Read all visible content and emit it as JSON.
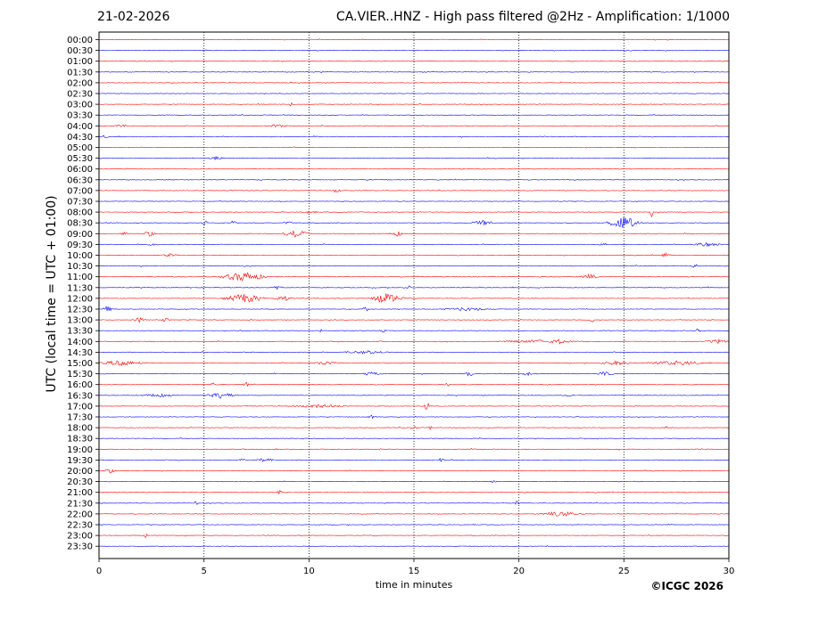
{
  "header": {
    "date": "21-02-2026",
    "title": "CA.VIER..HNZ - High pass filtered @2Hz - Amplification: 1/1000"
  },
  "footer": {
    "copyright": "©ICGC 2026"
  },
  "chart_data": {
    "type": "line",
    "title": "CA.VIER..HNZ - High pass filtered @2Hz - Amplification: 1/1000",
    "xlabel": "time in minutes",
    "ylabel": "UTC (local time = UTC + 01:00)",
    "xlim": [
      0,
      30
    ],
    "xticks": [
      0,
      5,
      10,
      15,
      20,
      25,
      30
    ],
    "vertical_gridlines": [
      5,
      10,
      15,
      20,
      25
    ],
    "grid": "dotted vertical lines",
    "row_labels": [
      "00:00",
      "00:30",
      "01:00",
      "01:30",
      "02:00",
      "02:30",
      "03:00",
      "03:30",
      "04:00",
      "04:30",
      "05:00",
      "05:30",
      "06:00",
      "06:30",
      "07:00",
      "07:30",
      "08:00",
      "08:30",
      "09:00",
      "09:30",
      "10:00",
      "10:30",
      "11:00",
      "11:30",
      "12:00",
      "12:30",
      "13:00",
      "13:30",
      "14:00",
      "14:30",
      "15:00",
      "15:30",
      "16:00",
      "16:30",
      "17:00",
      "17:30",
      "18:00",
      "18:30",
      "19:00",
      "19:30",
      "20:00",
      "20:30",
      "21:00",
      "21:30",
      "22:00",
      "22:30",
      "23:00",
      "23:30"
    ],
    "trace_colors": [
      "#ff0000",
      "#0000ff"
    ],
    "events": [
      {
        "row": 6,
        "t": 9.2,
        "amp": 4,
        "dur": 0.15
      },
      {
        "row": 8,
        "t": 1.0,
        "amp": 2,
        "dur": 0.5
      },
      {
        "row": 8,
        "t": 8.5,
        "amp": 2,
        "dur": 0.6
      },
      {
        "row": 9,
        "t": 0.3,
        "amp": 2,
        "dur": 0.3
      },
      {
        "row": 11,
        "t": 5.6,
        "amp": 2,
        "dur": 0.5
      },
      {
        "row": 14,
        "t": 11.3,
        "amp": 2.5,
        "dur": 0.3
      },
      {
        "row": 16,
        "t": 10.0,
        "amp": 2,
        "dur": 0.5
      },
      {
        "row": 16,
        "t": 26.3,
        "amp": 6,
        "dur": 0.15
      },
      {
        "row": 17,
        "t": 5.0,
        "amp": 4,
        "dur": 0.2
      },
      {
        "row": 17,
        "t": 6.4,
        "amp": 3,
        "dur": 0.2
      },
      {
        "row": 17,
        "t": 9.0,
        "amp": 2,
        "dur": 0.3
      },
      {
        "row": 17,
        "t": 18.3,
        "amp": 3,
        "dur": 0.8
      },
      {
        "row": 17,
        "t": 25.0,
        "amp": 7,
        "dur": 1.0
      },
      {
        "row": 18,
        "t": 1.2,
        "amp": 2,
        "dur": 0.3
      },
      {
        "row": 18,
        "t": 2.4,
        "amp": 3,
        "dur": 0.5
      },
      {
        "row": 18,
        "t": 9.4,
        "amp": 4.5,
        "dur": 0.8
      },
      {
        "row": 18,
        "t": 14.2,
        "amp": 3,
        "dur": 0.4
      },
      {
        "row": 19,
        "t": 2.6,
        "amp": 2,
        "dur": 0.4
      },
      {
        "row": 19,
        "t": 24.0,
        "amp": 2,
        "dur": 0.3
      },
      {
        "row": 19,
        "t": 29.0,
        "amp": 2.5,
        "dur": 1.0
      },
      {
        "row": 20,
        "t": 3.4,
        "amp": 2,
        "dur": 0.5
      },
      {
        "row": 20,
        "t": 27.0,
        "amp": 2.5,
        "dur": 0.3
      },
      {
        "row": 21,
        "t": 28.4,
        "amp": 3,
        "dur": 0.2
      },
      {
        "row": 22,
        "t": 6.9,
        "amp": 5.5,
        "dur": 1.4
      },
      {
        "row": 22,
        "t": 23.3,
        "amp": 3.5,
        "dur": 0.6
      },
      {
        "row": 23,
        "t": 14.8,
        "amp": 2.5,
        "dur": 0.2
      },
      {
        "row": 23,
        "t": 8.5,
        "amp": 2,
        "dur": 0.4
      },
      {
        "row": 24,
        "t": 6.9,
        "amp": 5.5,
        "dur": 1.2
      },
      {
        "row": 24,
        "t": 8.8,
        "amp": 3,
        "dur": 0.6
      },
      {
        "row": 24,
        "t": 13.7,
        "amp": 6,
        "dur": 1.0
      },
      {
        "row": 25,
        "t": 0.4,
        "amp": 3.5,
        "dur": 0.3
      },
      {
        "row": 25,
        "t": 12.7,
        "amp": 3,
        "dur": 0.2
      },
      {
        "row": 25,
        "t": 17.5,
        "amp": 2,
        "dur": 1.5
      },
      {
        "row": 26,
        "t": 1.9,
        "amp": 3,
        "dur": 0.4
      },
      {
        "row": 26,
        "t": 3.2,
        "amp": 2.5,
        "dur": 0.3
      },
      {
        "row": 26,
        "t": 23.5,
        "amp": 2.5,
        "dur": 0.3
      },
      {
        "row": 27,
        "t": 10.6,
        "amp": 3,
        "dur": 0.15
      },
      {
        "row": 27,
        "t": 13.5,
        "amp": 2,
        "dur": 0.3
      },
      {
        "row": 27,
        "t": 28.5,
        "amp": 3,
        "dur": 0.2
      },
      {
        "row": 28,
        "t": 21.0,
        "amp": 2,
        "dur": 2.5
      },
      {
        "row": 28,
        "t": 22.0,
        "amp": 3.5,
        "dur": 0.4
      },
      {
        "row": 28,
        "t": 29.5,
        "amp": 2.5,
        "dur": 0.8
      },
      {
        "row": 29,
        "t": 12.7,
        "amp": 2,
        "dur": 1.4
      },
      {
        "row": 30,
        "t": 1.0,
        "amp": 3,
        "dur": 1.5
      },
      {
        "row": 30,
        "t": 10.8,
        "amp": 2,
        "dur": 1.0
      },
      {
        "row": 30,
        "t": 24.6,
        "amp": 2.5,
        "dur": 1.0
      },
      {
        "row": 30,
        "t": 27.5,
        "amp": 2.5,
        "dur": 2.0
      },
      {
        "row": 31,
        "t": 13.0,
        "amp": 2.5,
        "dur": 0.6
      },
      {
        "row": 31,
        "t": 17.6,
        "amp": 5.5,
        "dur": 0.3
      },
      {
        "row": 31,
        "t": 20.4,
        "amp": 2.5,
        "dur": 0.3
      },
      {
        "row": 31,
        "t": 24.1,
        "amp": 2.5,
        "dur": 0.5
      },
      {
        "row": 32,
        "t": 5.5,
        "amp": 2.5,
        "dur": 0.3
      },
      {
        "row": 32,
        "t": 7.0,
        "amp": 3,
        "dur": 0.2
      },
      {
        "row": 32,
        "t": 16.6,
        "amp": 2.5,
        "dur": 0.2
      },
      {
        "row": 33,
        "t": 2.8,
        "amp": 2,
        "dur": 1.0
      },
      {
        "row": 33,
        "t": 5.8,
        "amp": 3.5,
        "dur": 0.9
      },
      {
        "row": 33,
        "t": 22.4,
        "amp": 2,
        "dur": 0.4
      },
      {
        "row": 34,
        "t": 10.4,
        "amp": 2,
        "dur": 2.0
      },
      {
        "row": 34,
        "t": 15.6,
        "amp": 7,
        "dur": 0.15
      },
      {
        "row": 35,
        "t": 13.0,
        "amp": 2,
        "dur": 0.3
      },
      {
        "row": 36,
        "t": 15.0,
        "amp": 2.5,
        "dur": 0.2
      },
      {
        "row": 36,
        "t": 15.8,
        "amp": 2.5,
        "dur": 0.15
      },
      {
        "row": 36,
        "t": 27.0,
        "amp": 2.5,
        "dur": 0.2
      },
      {
        "row": 39,
        "t": 6.8,
        "amp": 2,
        "dur": 0.2
      },
      {
        "row": 39,
        "t": 7.9,
        "amp": 3,
        "dur": 0.5
      },
      {
        "row": 39,
        "t": 16.3,
        "amp": 3.5,
        "dur": 0.15
      },
      {
        "row": 40,
        "t": 0.5,
        "amp": 2.5,
        "dur": 0.5
      },
      {
        "row": 41,
        "t": 18.8,
        "amp": 2,
        "dur": 0.3
      },
      {
        "row": 42,
        "t": 8.6,
        "amp": 2.5,
        "dur": 0.2
      },
      {
        "row": 43,
        "t": 4.6,
        "amp": 3,
        "dur": 0.15
      },
      {
        "row": 43,
        "t": 19.9,
        "amp": 2.5,
        "dur": 0.15
      },
      {
        "row": 44,
        "t": 22.0,
        "amp": 3,
        "dur": 1.4
      },
      {
        "row": 46,
        "t": 2.2,
        "amp": 3,
        "dur": 0.15
      }
    ]
  }
}
